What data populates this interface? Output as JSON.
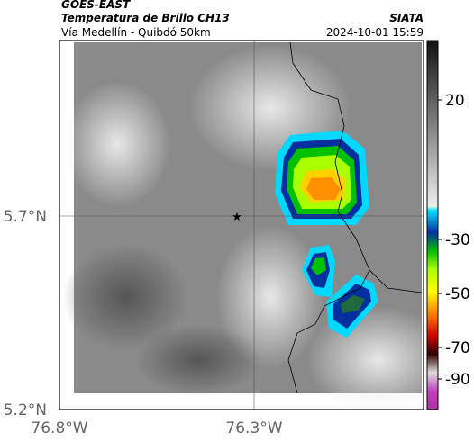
{
  "header": {
    "product": "GOES-EAST",
    "title": "Temperatura de Brillo CH13",
    "subtitle": "Vía Medellín - Quibdó 50km",
    "source": "SIATA",
    "datetime": "2024-10-01 15:59"
  },
  "map": {
    "lat_labels": [
      "5.7°N",
      "5.2°N"
    ],
    "lon_labels": [
      "76.8°W",
      "76.3°W"
    ]
  },
  "colorbar": {
    "ticks": [
      "20",
      "-30",
      "-50",
      "-70",
      "-90"
    ]
  }
}
